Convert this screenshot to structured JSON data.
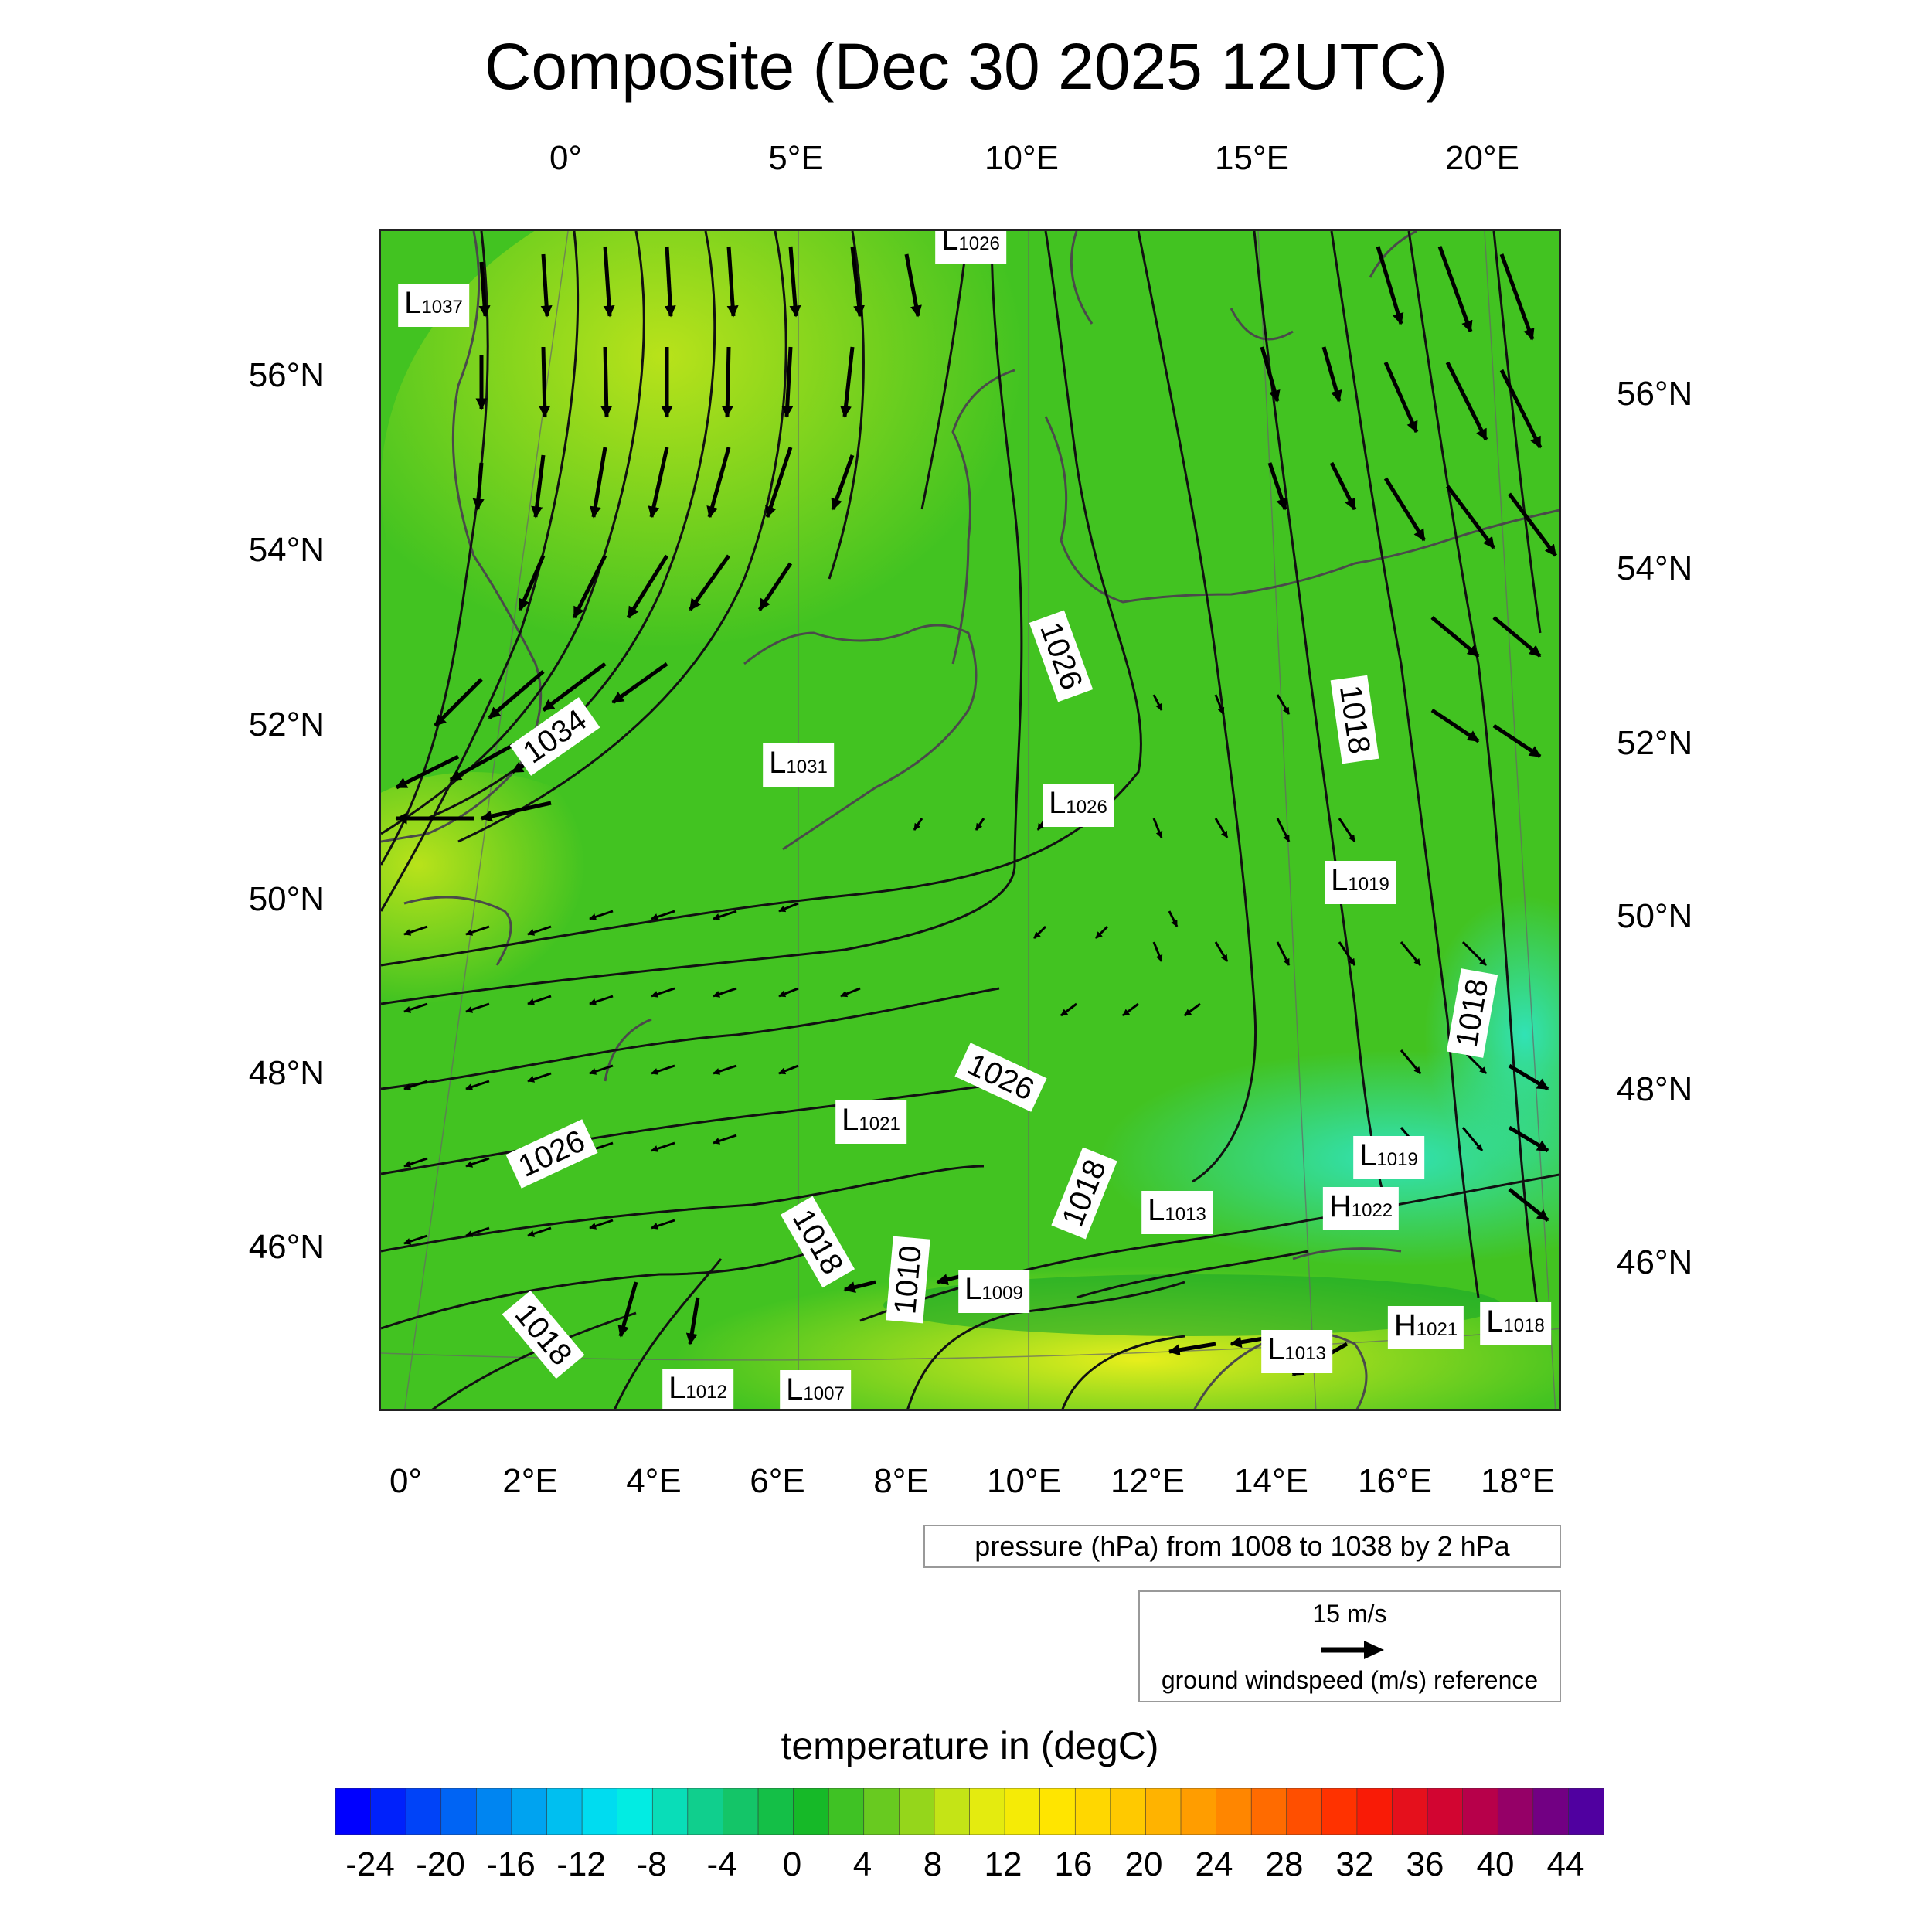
{
  "title": "Composite (Dec 30 2025 12UTC)",
  "top_lon_labels": [
    "0°",
    "5°E",
    "10°E",
    "15°E",
    "20°E"
  ],
  "bottom_lon_labels": [
    "0°",
    "2°E",
    "4°E",
    "6°E",
    "8°E",
    "10°E",
    "12°E",
    "14°E",
    "16°E",
    "18°E"
  ],
  "left_lat_labels": [
    "56°N",
    "54°N",
    "52°N",
    "50°N",
    "48°N",
    "46°N"
  ],
  "right_lat_labels": [
    "56°N",
    "54°N",
    "52°N",
    "50°N",
    "48°N",
    "46°N"
  ],
  "pressure_centers": [
    {
      "type": "L",
      "value": "1026"
    },
    {
      "type": "L",
      "value": "1037"
    },
    {
      "type": "L",
      "value": "1031"
    },
    {
      "type": "L",
      "value": "1026"
    },
    {
      "type": "L",
      "value": "1019"
    },
    {
      "type": "L",
      "value": "1021"
    },
    {
      "type": "L",
      "value": "1019"
    },
    {
      "type": "L",
      "value": "1013"
    },
    {
      "type": "H",
      "value": "1022"
    },
    {
      "type": "L",
      "value": "1009"
    },
    {
      "type": "H",
      "value": "1021"
    },
    {
      "type": "L",
      "value": "1018"
    },
    {
      "type": "L",
      "value": "1013"
    },
    {
      "type": "L",
      "value": "1012"
    },
    {
      "type": "L",
      "value": "1007"
    }
  ],
  "contour_labels": [
    "1026",
    "1018",
    "1034",
    "1018",
    "1026",
    "1026",
    "1018",
    "1018",
    "1010",
    "1018"
  ],
  "pressure_note": "pressure (hPa) from 1008 to 1038 by 2 hPa",
  "wind_reference": {
    "speed": "15 m/s",
    "caption": "ground windspeed (m/s) reference"
  },
  "colorbar": {
    "title": "temperature in (degC)",
    "labels": [
      "-24",
      "-20",
      "-16",
      "-12",
      "-8",
      "-4",
      "0",
      "4",
      "8",
      "12",
      "16",
      "20",
      "24",
      "28",
      "32",
      "36",
      "40",
      "44"
    ],
    "min": -26,
    "max": 46,
    "step": 2
  },
  "colors": {
    "field_green": "#3cbf1e",
    "field_yellow": "#c8e61a",
    "field_cyan": "#33e0c0",
    "contour": "#111111",
    "coast": "#555555"
  }
}
